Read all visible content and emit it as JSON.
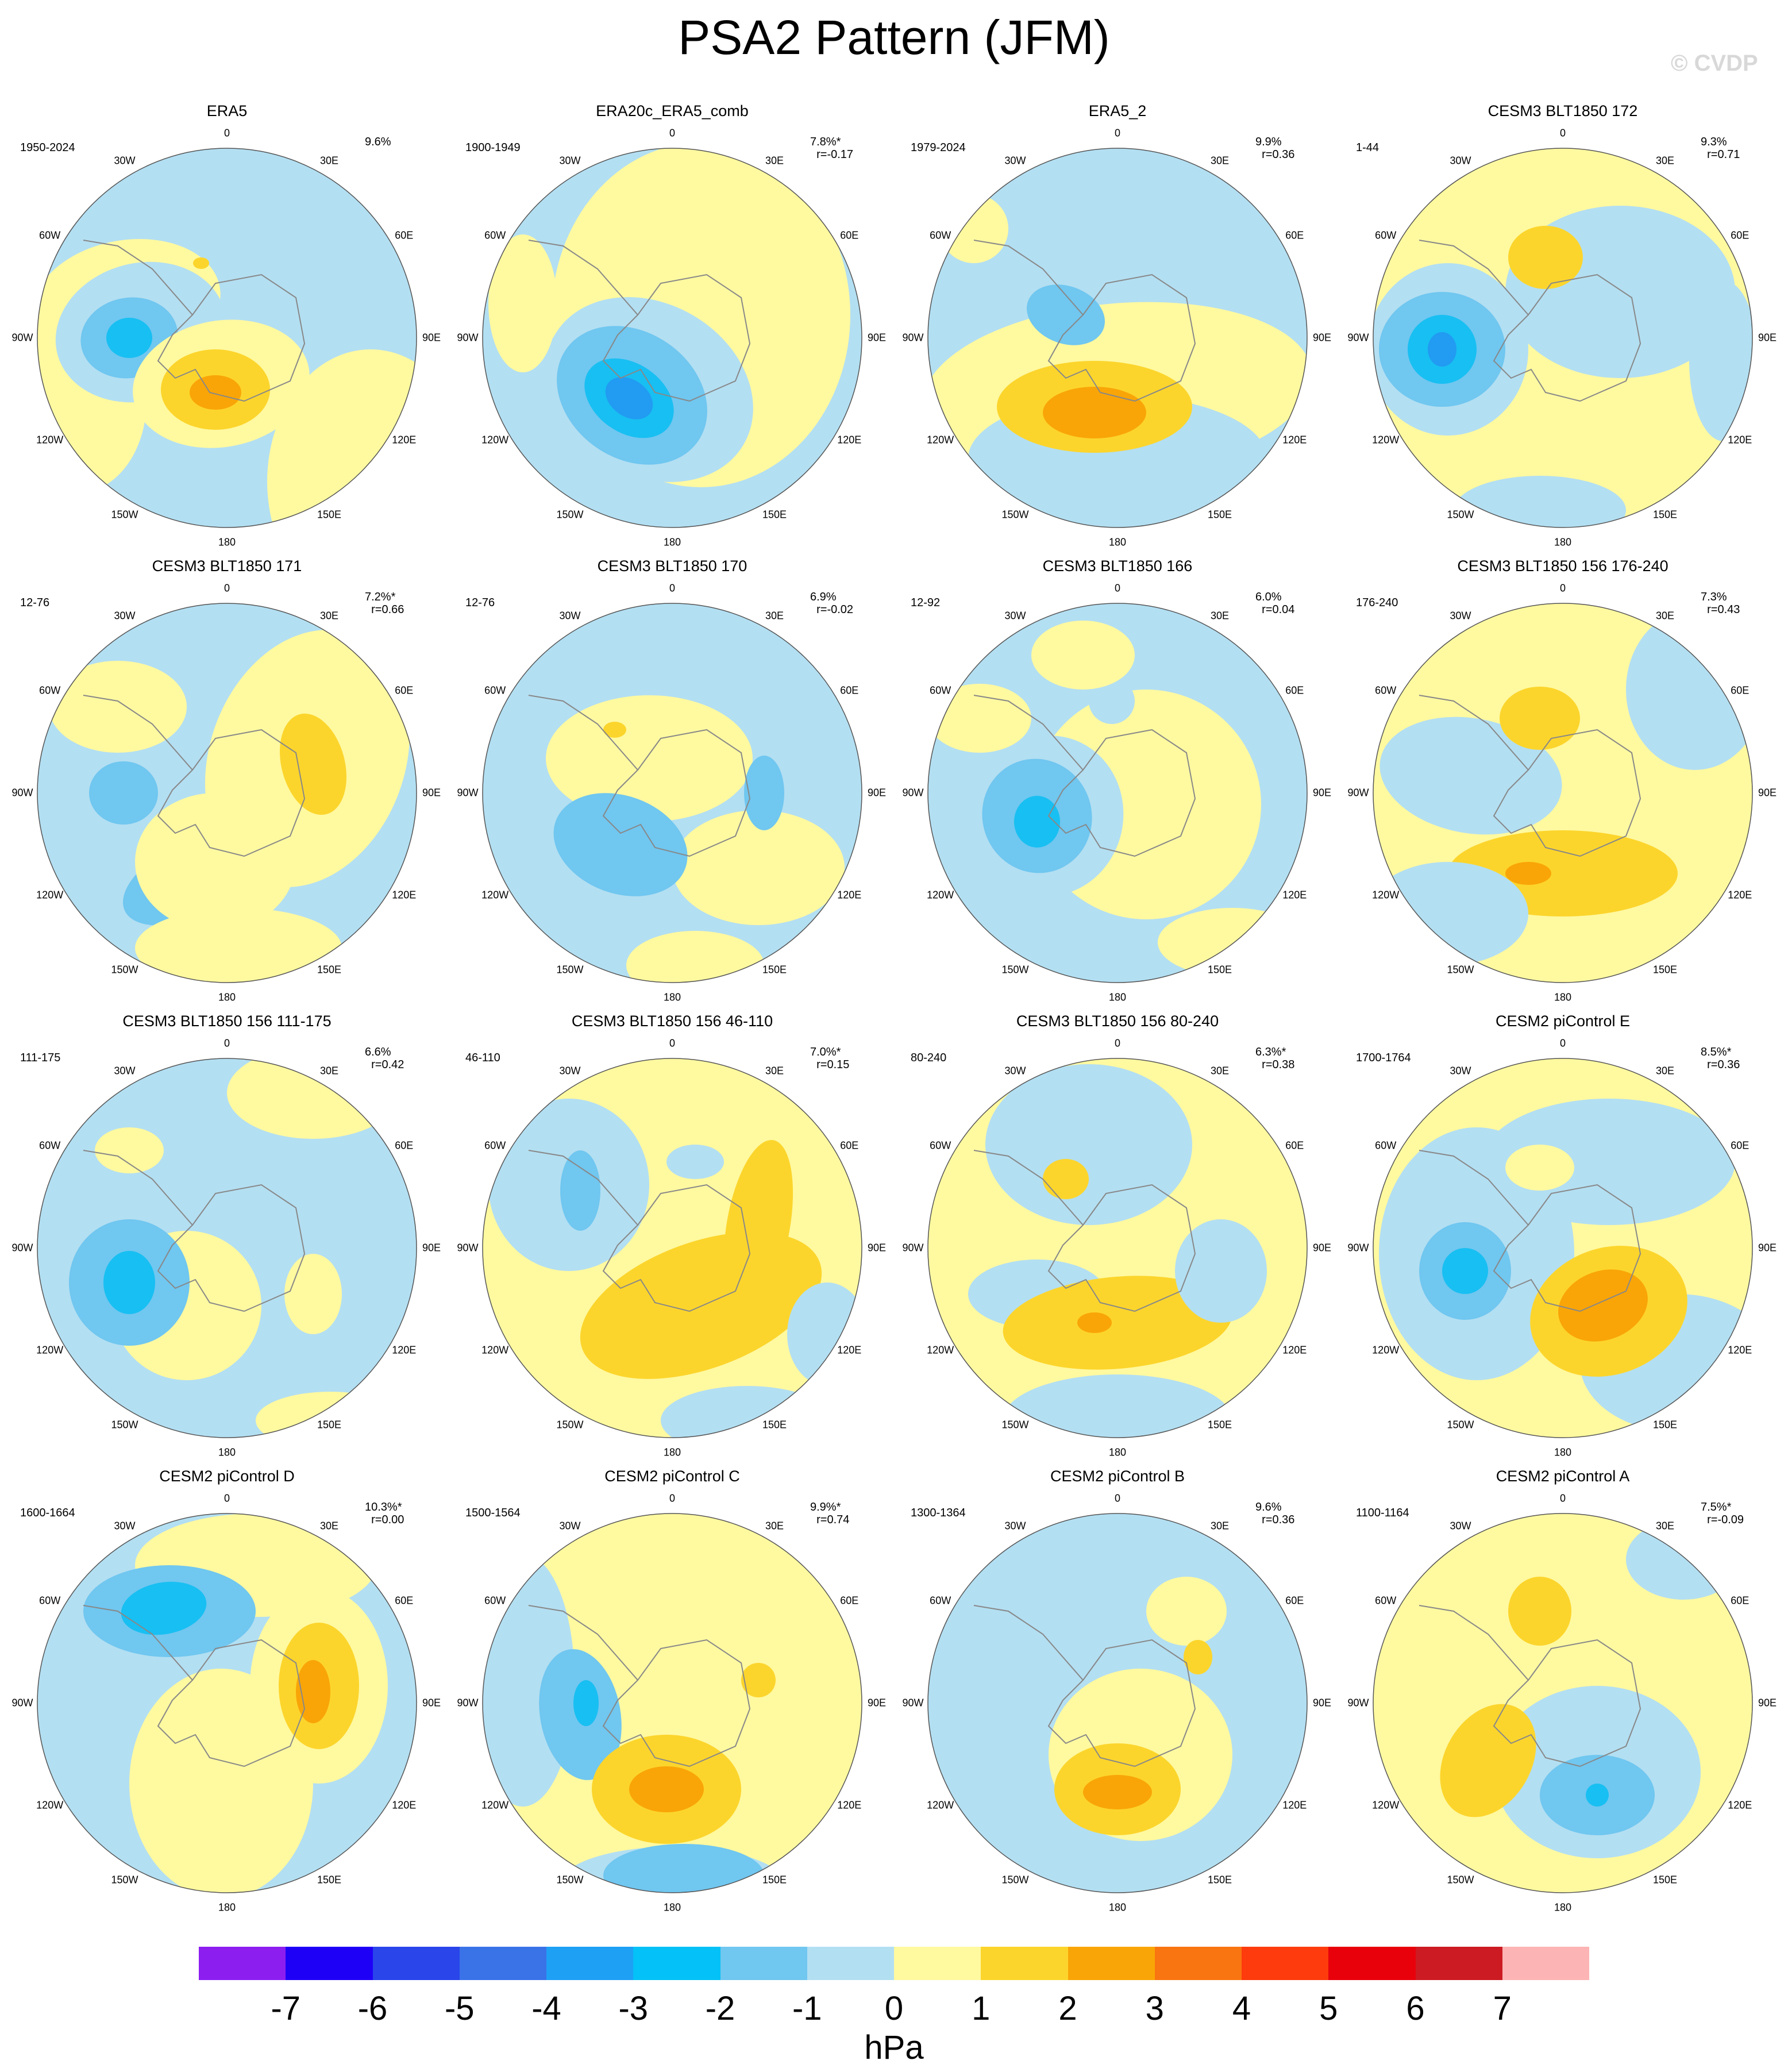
{
  "title": "PSA2 Pattern (JFM)",
  "watermark": "© CVDP",
  "lon_labels": [
    "0",
    "30E",
    "60E",
    "90E",
    "120E",
    "150E",
    "180",
    "150W",
    "120W",
    "90W",
    "60W",
    "30W"
  ],
  "colors": {
    "neg1": "#b3dff2",
    "neg2": "#70c7f0",
    "neg3": "#18bff2",
    "neg4": "#229bf2",
    "pos1": "#fff9a0",
    "pos2": "#fcd52c",
    "pos3": "#f9a507",
    "pos4": "#f57a0f",
    "coast": "#888888"
  },
  "panels": [
    {
      "title": "ERA5",
      "years": "1950-2024",
      "stats": "9.6%",
      "base": "neg1"
    },
    {
      "title": "ERA20c_ERA5_comb",
      "years": "1900-1949",
      "stats": "7.8%*\n  r=-0.17",
      "base": "neg1"
    },
    {
      "title": "ERA5_2",
      "years": "1979-2024",
      "stats": "9.9%\n  r=0.36",
      "base": "neg1"
    },
    {
      "title": "CESM3 BLT1850 172",
      "years": "1-44",
      "stats": "9.3%\n  r=0.71",
      "base": "pos1"
    },
    {
      "title": "CESM3 BLT1850 171",
      "years": "12-76",
      "stats": "7.2%*\n  r=0.66",
      "base": "neg1"
    },
    {
      "title": "CESM3 BLT1850 170",
      "years": "12-76",
      "stats": "6.9%\n  r=-0.02",
      "base": "neg1"
    },
    {
      "title": "CESM3 BLT1850 166",
      "years": "12-92",
      "stats": "6.0%\n  r=0.04",
      "base": "neg1"
    },
    {
      "title": "CESM3 BLT1850 156 176-240",
      "years": "176-240",
      "stats": "7.3%\n  r=0.43",
      "base": "pos1"
    },
    {
      "title": "CESM3 BLT1850 156 111-175",
      "years": "111-175",
      "stats": "6.6%\n  r=0.42",
      "base": "neg1"
    },
    {
      "title": "CESM3 BLT1850 156 46-110",
      "years": "46-110",
      "stats": "7.0%*\n  r=0.15",
      "base": "pos1"
    },
    {
      "title": "CESM3 BLT1850 156 80-240",
      "years": "80-240",
      "stats": "6.3%*\n  r=0.38",
      "base": "pos1"
    },
    {
      "title": "CESM2 piControl E",
      "years": "1700-1764",
      "stats": "8.5%*\n  r=0.36",
      "base": "pos1"
    },
    {
      "title": "CESM2 piControl D",
      "years": "1600-1664",
      "stats": "10.3%*\n  r=0.00",
      "base": "neg1"
    },
    {
      "title": "CESM2 piControl C",
      "years": "1500-1564",
      "stats": "9.9%*\n  r=0.74",
      "base": "pos1"
    },
    {
      "title": "CESM2 piControl B",
      "years": "1300-1364",
      "stats": "9.6%\n  r=0.36",
      "base": "neg1"
    },
    {
      "title": "CESM2 piControl A",
      "years": "1100-1164",
      "stats": "7.5%*\n  r=-0.09",
      "base": "pos1"
    }
  ],
  "colorbar": {
    "colors": [
      "#8c1ff0",
      "#1f00f7",
      "#2a45ea",
      "#3a72e8",
      "#1ea0f5",
      "#04c1f7",
      "#70c7f0",
      "#b3dff2",
      "#fff9a0",
      "#fcd52c",
      "#f9a507",
      "#f97511",
      "#fd3b0d",
      "#e8000b",
      "#cc1b23",
      "#fcb4b4"
    ],
    "ticks": [
      "-7",
      "-6",
      "-5",
      "-4",
      "-3",
      "-2",
      "-1",
      "0",
      "1",
      "2",
      "3",
      "4",
      "5",
      "6",
      "7"
    ],
    "units": "hPa"
  }
}
